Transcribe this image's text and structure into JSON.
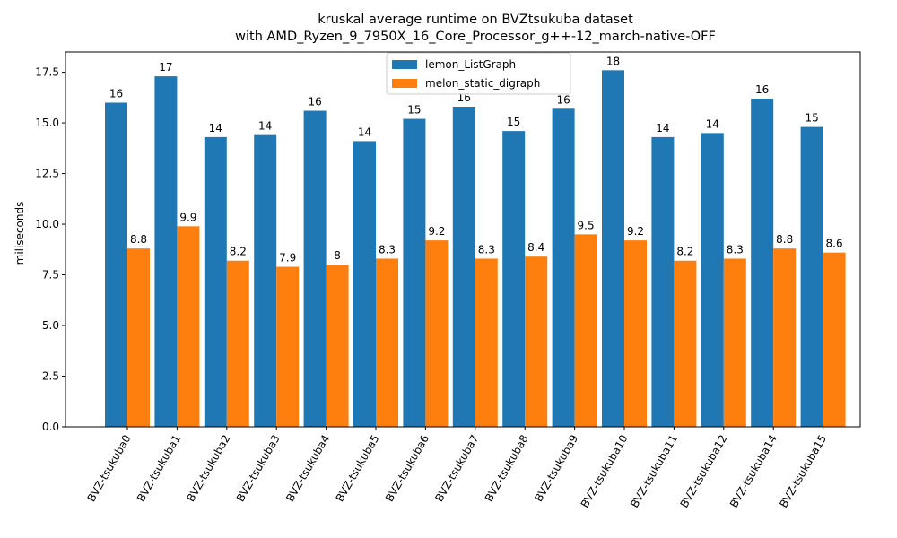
{
  "chart_data": {
    "type": "bar",
    "title": "kruskal average runtime on BVZtsukuba dataset",
    "subtitle": "with AMD_Ryzen_9_7950X_16_Core_Processor_g++-12_march-native-OFF",
    "xlabel": "",
    "ylabel": "miliseconds",
    "ylim": [
      0,
      18.5
    ],
    "yticks": [
      0.0,
      2.5,
      5.0,
      7.5,
      10.0,
      12.5,
      15.0,
      17.5
    ],
    "ytick_labels": [
      "0.0",
      "2.5",
      "5.0",
      "7.5",
      "10.0",
      "12.5",
      "15.0",
      "17.5"
    ],
    "legend_position": "top-center",
    "grid": false,
    "categories": [
      "BVZ-tsukuba0",
      "BVZ-tsukuba1",
      "BVZ-tsukuba2",
      "BVZ-tsukuba3",
      "BVZ-tsukuba4",
      "BVZ-tsukuba5",
      "BVZ-tsukuba6",
      "BVZ-tsukuba7",
      "BVZ-tsukuba8",
      "BVZ-tsukuba9",
      "BVZ-tsukuba10",
      "BVZ-tsukuba11",
      "BVZ-tsukuba12",
      "BVZ-tsukuba14",
      "BVZ-tsukuba15"
    ],
    "series": [
      {
        "name": "lemon_ListGraph",
        "color": "#1f77b4",
        "values": [
          16.0,
          17.3,
          14.3,
          14.4,
          15.6,
          14.1,
          15.2,
          15.8,
          14.6,
          15.7,
          17.6,
          14.3,
          14.5,
          16.2,
          14.8
        ],
        "labels": [
          "16",
          "17",
          "14",
          "14",
          "16",
          "14",
          "15",
          "16",
          "15",
          "16",
          "18",
          "14",
          "14",
          "16",
          "15"
        ]
      },
      {
        "name": "melon_static_digraph",
        "color": "#ff7f0e",
        "values": [
          8.8,
          9.9,
          8.2,
          7.9,
          8.0,
          8.3,
          9.2,
          8.3,
          8.4,
          9.5,
          9.2,
          8.2,
          8.3,
          8.8,
          8.6
        ],
        "labels": [
          "8.8",
          "9.9",
          "8.2",
          "7.9",
          "8",
          "8.3",
          "9.2",
          "8.3",
          "8.4",
          "9.5",
          "9.2",
          "8.2",
          "8.3",
          "8.8",
          "8.6"
        ]
      }
    ]
  }
}
